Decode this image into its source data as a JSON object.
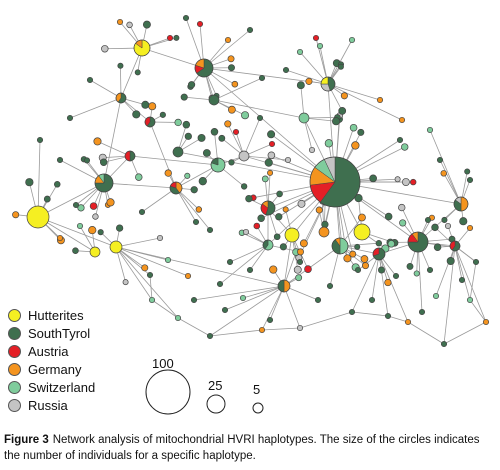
{
  "caption": {
    "label": "Figure 3",
    "text": "Network analysis of mitochondrial HVRI haplotypes. The size of the circles indicates the number of individuals for a specific haplotype."
  },
  "legend": [
    {
      "label": "Hutterites",
      "color": "#f5ef22"
    },
    {
      "label": "SouthTyrol",
      "color": "#3f6f4f"
    },
    {
      "label": "Austria",
      "color": "#e41f26"
    },
    {
      "label": "Germany",
      "color": "#f4941f"
    },
    {
      "label": "Switzerland",
      "color": "#7fcc9c"
    },
    {
      "label": "Russia",
      "color": "#c4c4c4"
    }
  ],
  "size_legend": {
    "values": [
      "100",
      "25",
      "5"
    ]
  }
}
